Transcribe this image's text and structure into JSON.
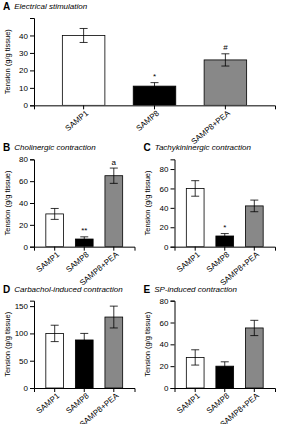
{
  "chart_data": [
    {
      "type": "bar",
      "label": "A",
      "title": "Electrical stimulation",
      "y_label": "Tension (g/g tissue)",
      "categories": [
        "SAMP1",
        "SAMP8",
        "SAMP8+PEA"
      ],
      "values": [
        40,
        11,
        26
      ],
      "errors": [
        4,
        2,
        3.5
      ],
      "colors": [
        "white",
        "black",
        "#888888"
      ],
      "annotations": [
        null,
        "*",
        "#"
      ],
      "ylim": [
        0,
        50
      ],
      "yticks": [
        0,
        10,
        20,
        30,
        40
      ]
    },
    {
      "type": "bar",
      "label": "B",
      "title": "Cholinergic contraction",
      "y_label": "Tension (g/g tissue)",
      "categories": [
        "SAMP1",
        "SAMP8",
        "SAMP8+PEA"
      ],
      "values": [
        30,
        7,
        65
      ],
      "errors": [
        5,
        2,
        7
      ],
      "colors": [
        "white",
        "black",
        "#888888"
      ],
      "annotations": [
        null,
        "**",
        "a"
      ],
      "ylim": [
        0,
        80
      ],
      "yticks": [
        0,
        20,
        40,
        60,
        80
      ]
    },
    {
      "type": "bar",
      "label": "C",
      "title": "Tachykininergic contraction",
      "y_label": "Tension (g/g tissue)",
      "categories": [
        "SAMP1",
        "SAMP8",
        "SAMP8+PEA"
      ],
      "values": [
        60,
        11,
        42
      ],
      "errors": [
        8,
        2.5,
        6
      ],
      "colors": [
        "white",
        "black",
        "#888888"
      ],
      "annotations": [
        null,
        "*",
        null
      ],
      "ylim": [
        0,
        90
      ],
      "yticks": [
        0,
        20,
        40,
        60,
        80
      ]
    },
    {
      "type": "bar",
      "label": "D",
      "title": "Carbachol-induced contraction",
      "y_label": "Tension (g/g tissue)",
      "categories": [
        "SAMP1",
        "SAMP8",
        "SAMP8+PEA"
      ],
      "values": [
        100,
        88,
        130
      ],
      "errors": [
        15,
        12,
        20
      ],
      "colors": [
        "white",
        "black",
        "#888888"
      ],
      "ylim": [
        0,
        160
      ],
      "yticks": [
        0,
        50,
        100,
        150
      ]
    },
    {
      "type": "bar",
      "label": "E",
      "title": "SP-induced contraction",
      "y_label": "Tension (g/g tissue)",
      "categories": [
        "SAMP1",
        "SAMP8",
        "SAMP8+PEA"
      ],
      "values": [
        28,
        20,
        55
      ],
      "errors": [
        7,
        4,
        7
      ],
      "colors": [
        "white",
        "black",
        "#888888"
      ],
      "ylim": [
        0,
        80
      ],
      "yticks": [
        0,
        20,
        40,
        60,
        80
      ]
    }
  ]
}
